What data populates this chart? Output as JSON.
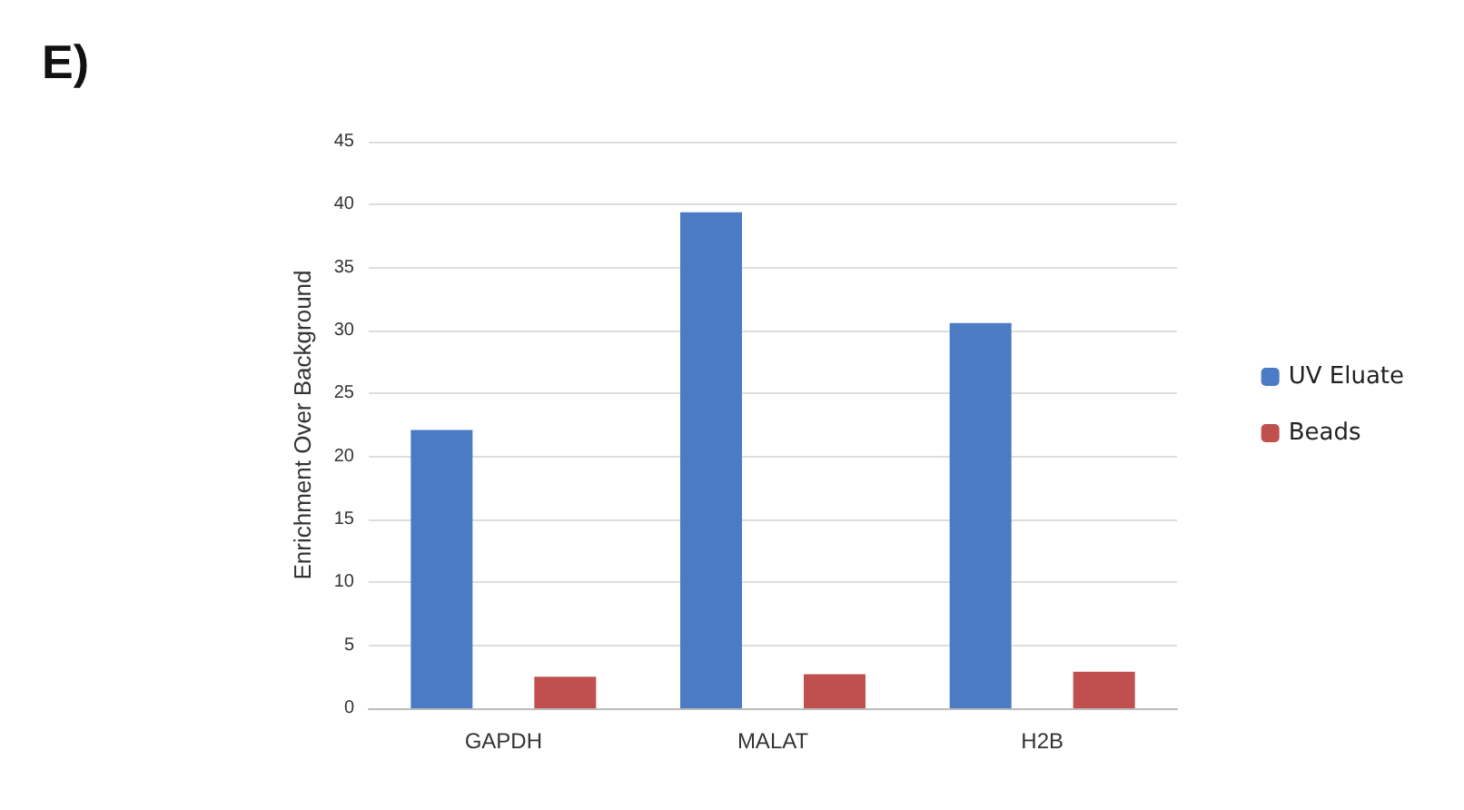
{
  "chart_data": {
    "type": "bar",
    "title": "E)",
    "ylabel": "Enrichment Over Background",
    "categories": [
      "GAPDH",
      "MALAT",
      "H2B"
    ],
    "series": [
      {
        "name": "UV Eluate",
        "color": "#4a7bc4",
        "values": [
          22.1,
          39.4,
          30.6
        ]
      },
      {
        "name": "Beads",
        "color": "#c0504d",
        "values": [
          2.5,
          2.7,
          2.9
        ]
      }
    ],
    "ylim": [
      0,
      45
    ],
    "yticks": [
      0,
      5,
      10,
      15,
      20,
      25,
      30,
      35,
      40,
      45
    ],
    "grid": "y",
    "legend": "right"
  }
}
